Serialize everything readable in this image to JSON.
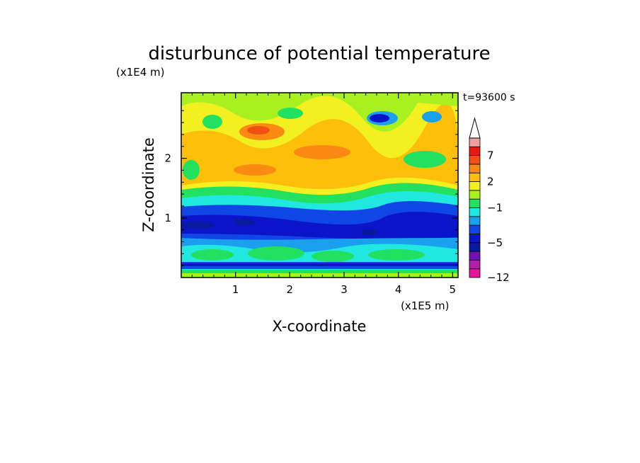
{
  "chart_data": {
    "type": "heatmap",
    "title": "disturbunce of potential temperature",
    "time_label": "t=93600 s",
    "xlabel": "X-coordinate",
    "ylabel": "Z-coordinate",
    "x_unit": "(x1E5 m)",
    "y_unit": "(x1E4 m)",
    "xlim": [
      0,
      5.1
    ],
    "ylim": [
      0,
      3.1
    ],
    "x_ticks": [
      1,
      2,
      3,
      4,
      5
    ],
    "y_ticks": [
      1,
      2
    ],
    "x_tick_labels": [
      "1",
      "2",
      "3",
      "4",
      "5"
    ],
    "y_tick_labels": [
      "1",
      "2"
    ],
    "colorbar": {
      "extend": "max",
      "bands": [
        {
          "from": -12,
          "to": -10,
          "color": "#e8149e"
        },
        {
          "from": -10,
          "to": -8,
          "color": "#b01fa8"
        },
        {
          "from": -8,
          "to": -6,
          "color": "#7010b0"
        },
        {
          "from": -6,
          "to": -5,
          "color": "#0a1a9e"
        },
        {
          "from": -5,
          "to": -4,
          "color": "#0a14c8"
        },
        {
          "from": -4,
          "to": -3,
          "color": "#1046e6"
        },
        {
          "from": -3,
          "to": -2,
          "color": "#1aa0ec"
        },
        {
          "from": -2,
          "to": -1,
          "color": "#20e8e0"
        },
        {
          "from": -1,
          "to": 0,
          "color": "#22e060"
        },
        {
          "from": 0,
          "to": 1,
          "color": "#a8f020"
        },
        {
          "from": 1,
          "to": 2,
          "color": "#f2f020"
        },
        {
          "from": 2,
          "to": 3,
          "color": "#fdbf0a"
        },
        {
          "from": 3,
          "to": 5,
          "color": "#fb8a14"
        },
        {
          "from": 5,
          "to": 7,
          "color": "#f05012"
        },
        {
          "from": 7,
          "to": 9,
          "color": "#e81818"
        },
        {
          "from": 9,
          "to": 11,
          "color": "#f0a0a0"
        }
      ],
      "tick_labels": [
        {
          "value": -12,
          "label": "−12"
        },
        {
          "value": -5,
          "label": "−5"
        },
        {
          "value": -1,
          "label": "−1"
        },
        {
          "value": 2,
          "label": "2"
        },
        {
          "value": 7,
          "label": "7"
        }
      ]
    }
  }
}
